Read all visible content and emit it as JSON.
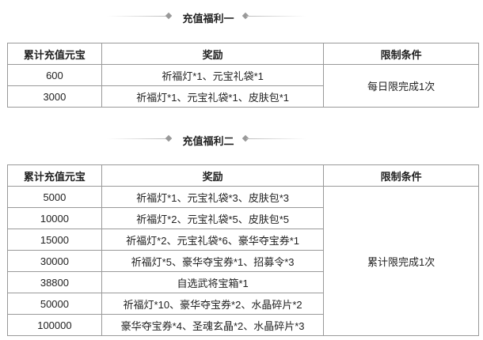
{
  "sections": [
    {
      "title": "充值福利一",
      "headers": [
        "累计充值元宝",
        "奖励",
        "限制条件"
      ],
      "rows": [
        {
          "amount": "600",
          "reward": "祈福灯*1、元宝礼袋*1"
        },
        {
          "amount": "3000",
          "reward": "祈福灯*1、元宝礼袋*1、皮肤包*1"
        }
      ],
      "limit": "每日限完成1次"
    },
    {
      "title": "充值福利二",
      "headers": [
        "累计充值元宝",
        "奖励",
        "限制条件"
      ],
      "rows": [
        {
          "amount": "5000",
          "reward": "祈福灯*1、元宝礼袋*3、皮肤包*3"
        },
        {
          "amount": "10000",
          "reward": "祈福灯*2、元宝礼袋*5、皮肤包*5"
        },
        {
          "amount": "15000",
          "reward": "祈福灯*2、元宝礼袋*6、豪华夺宝券*1"
        },
        {
          "amount": "30000",
          "reward": "祈福灯*5、豪华夺宝券*1、招募令*3"
        },
        {
          "amount": "38800",
          "reward": "自选武将宝箱*1"
        },
        {
          "amount": "50000",
          "reward": "祈福灯*10、豪华夺宝券*2、水晶碎片*2"
        },
        {
          "amount": "100000",
          "reward": "豪华夺宝券*4、圣魂玄晶*2、水晶碎片*3"
        }
      ],
      "limit": "累计限完成1次"
    }
  ]
}
